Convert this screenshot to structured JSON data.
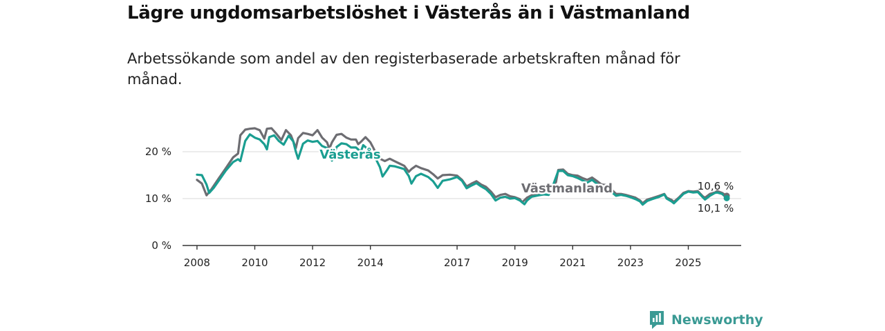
{
  "title": "Lägre ungdomsarbetslöshet i Västerås än i Västmanland",
  "subtitle": "Arbetssökande som andel av den registerbaserade arbetskraften månad för månad.",
  "brand": {
    "name": "Newsworthy",
    "icon": "newsworthy-logo-icon",
    "color": "#3a9a94"
  },
  "chart_data": {
    "type": "line",
    "title": "Lägre ungdomsarbetslöshet i Västerås än i Västmanland",
    "xlabel": "",
    "ylabel": "",
    "xlim": [
      2007.5,
      2026.83
    ],
    "ylim": [
      0,
      20
    ],
    "y_ticks": [
      0,
      10,
      20
    ],
    "y_tick_labels": [
      "0 %",
      "10 %",
      "20 %"
    ],
    "x_ticks": [
      2008,
      2010,
      2012,
      2014,
      2017,
      2019,
      2021,
      2023,
      2025
    ],
    "x_tick_labels": [
      "2008",
      "2010",
      "2012",
      "2014",
      "2017",
      "2019",
      "2021",
      "2023",
      "2025"
    ],
    "grid": true,
    "series": [
      {
        "name": "Västmanland",
        "label": "Västmanland",
        "color": "#6d6d72",
        "end_label": "10,6 %",
        "points": [
          [
            2008.0,
            14.0
          ],
          [
            2008.17,
            13.2
          ],
          [
            2008.33,
            10.7
          ],
          [
            2008.5,
            12.0
          ],
          [
            2008.75,
            14.3
          ],
          [
            2009.0,
            16.5
          ],
          [
            2009.25,
            18.8
          ],
          [
            2009.42,
            19.6
          ],
          [
            2009.5,
            23.5
          ],
          [
            2009.67,
            24.7
          ],
          [
            2009.83,
            24.9
          ],
          [
            2010.0,
            25.0
          ],
          [
            2010.17,
            24.6
          ],
          [
            2010.33,
            22.8
          ],
          [
            2010.42,
            24.9
          ],
          [
            2010.58,
            25.0
          ],
          [
            2010.75,
            23.8
          ],
          [
            2010.92,
            22.5
          ],
          [
            2011.08,
            24.6
          ],
          [
            2011.25,
            23.5
          ],
          [
            2011.42,
            20.8
          ],
          [
            2011.5,
            22.9
          ],
          [
            2011.67,
            24.0
          ],
          [
            2011.83,
            23.8
          ],
          [
            2012.0,
            23.5
          ],
          [
            2012.17,
            24.6
          ],
          [
            2012.33,
            23.0
          ],
          [
            2012.5,
            22.0
          ],
          [
            2012.58,
            20.6
          ],
          [
            2012.67,
            22.0
          ],
          [
            2012.83,
            23.6
          ],
          [
            2013.0,
            23.8
          ],
          [
            2013.17,
            23.0
          ],
          [
            2013.33,
            22.6
          ],
          [
            2013.5,
            22.6
          ],
          [
            2013.58,
            21.6
          ],
          [
            2013.67,
            22.1
          ],
          [
            2013.83,
            23.1
          ],
          [
            2014.0,
            22.0
          ],
          [
            2014.17,
            20.0
          ],
          [
            2014.33,
            18.5
          ],
          [
            2014.5,
            18.0
          ],
          [
            2014.67,
            18.5
          ],
          [
            2014.83,
            18.0
          ],
          [
            2015.0,
            17.5
          ],
          [
            2015.17,
            17.0
          ],
          [
            2015.33,
            15.7
          ],
          [
            2015.42,
            16.3
          ],
          [
            2015.58,
            17.0
          ],
          [
            2015.75,
            16.5
          ],
          [
            2016.0,
            16.0
          ],
          [
            2016.17,
            15.2
          ],
          [
            2016.33,
            14.3
          ],
          [
            2016.5,
            15.0
          ],
          [
            2016.75,
            15.1
          ],
          [
            2017.0,
            14.9
          ],
          [
            2017.17,
            14.0
          ],
          [
            2017.33,
            12.6
          ],
          [
            2017.5,
            13.2
          ],
          [
            2017.67,
            13.7
          ],
          [
            2017.83,
            13.0
          ],
          [
            2018.0,
            12.5
          ],
          [
            2018.17,
            11.5
          ],
          [
            2018.33,
            10.3
          ],
          [
            2018.5,
            10.8
          ],
          [
            2018.67,
            11.0
          ],
          [
            2018.83,
            10.5
          ],
          [
            2019.0,
            10.3
          ],
          [
            2019.17,
            9.9
          ],
          [
            2019.25,
            9.2
          ],
          [
            2019.42,
            10.2
          ],
          [
            2019.58,
            10.7
          ],
          [
            2019.83,
            11.0
          ],
          [
            2020.0,
            11.5
          ],
          [
            2020.25,
            12.5
          ],
          [
            2020.42,
            13.5
          ],
          [
            2020.5,
            16.1
          ],
          [
            2020.67,
            16.2
          ],
          [
            2020.83,
            15.3
          ],
          [
            2021.0,
            15.0
          ],
          [
            2021.17,
            14.9
          ],
          [
            2021.33,
            14.4
          ],
          [
            2021.5,
            14.0
          ],
          [
            2021.67,
            14.5
          ],
          [
            2021.83,
            13.8
          ],
          [
            2022.0,
            13.0
          ],
          [
            2022.17,
            12.9
          ],
          [
            2022.33,
            12.0
          ],
          [
            2022.5,
            11.0
          ],
          [
            2022.67,
            11.0
          ],
          [
            2022.83,
            10.8
          ],
          [
            2023.0,
            10.5
          ],
          [
            2023.17,
            10.2
          ],
          [
            2023.33,
            9.6
          ],
          [
            2023.42,
            9.0
          ],
          [
            2023.58,
            9.8
          ],
          [
            2023.75,
            10.1
          ],
          [
            2024.0,
            10.6
          ],
          [
            2024.17,
            11.0
          ],
          [
            2024.25,
            10.2
          ],
          [
            2024.42,
            9.7
          ],
          [
            2024.5,
            9.3
          ],
          [
            2024.67,
            10.2
          ],
          [
            2024.83,
            11.2
          ],
          [
            2025.0,
            11.6
          ],
          [
            2025.17,
            11.5
          ],
          [
            2025.33,
            11.6
          ],
          [
            2025.5,
            10.5
          ],
          [
            2025.58,
            10.2
          ],
          [
            2025.75,
            11.0
          ],
          [
            2025.92,
            11.3
          ],
          [
            2026.0,
            11.6
          ],
          [
            2026.17,
            11.2
          ],
          [
            2026.33,
            10.6
          ]
        ]
      },
      {
        "name": "Västerås",
        "label": "Västerås",
        "color": "#1a9e91",
        "end_label": "10,1 %",
        "points": [
          [
            2008.0,
            15.1
          ],
          [
            2008.17,
            15.0
          ],
          [
            2008.33,
            13.0
          ],
          [
            2008.42,
            11.2
          ],
          [
            2008.58,
            12.3
          ],
          [
            2008.83,
            14.5
          ],
          [
            2009.0,
            16.0
          ],
          [
            2009.25,
            17.8
          ],
          [
            2009.42,
            18.4
          ],
          [
            2009.5,
            18.0
          ],
          [
            2009.67,
            22.3
          ],
          [
            2009.83,
            23.7
          ],
          [
            2010.0,
            23.0
          ],
          [
            2010.17,
            22.6
          ],
          [
            2010.33,
            21.6
          ],
          [
            2010.42,
            20.5
          ],
          [
            2010.5,
            23.1
          ],
          [
            2010.67,
            23.5
          ],
          [
            2010.83,
            22.3
          ],
          [
            2011.0,
            21.5
          ],
          [
            2011.17,
            23.4
          ],
          [
            2011.33,
            22.2
          ],
          [
            2011.42,
            20.0
          ],
          [
            2011.5,
            18.5
          ],
          [
            2011.67,
            21.7
          ],
          [
            2011.83,
            22.4
          ],
          [
            2012.0,
            22.1
          ],
          [
            2012.17,
            22.3
          ],
          [
            2012.33,
            21.2
          ],
          [
            2012.5,
            20.8
          ],
          [
            2012.58,
            19.5
          ],
          [
            2012.67,
            18.1
          ],
          [
            2012.83,
            21.0
          ],
          [
            2013.0,
            21.8
          ],
          [
            2013.17,
            21.6
          ],
          [
            2013.33,
            20.9
          ],
          [
            2013.5,
            20.9
          ],
          [
            2013.67,
            20.0
          ],
          [
            2013.75,
            21.4
          ],
          [
            2013.92,
            20.5
          ],
          [
            2014.08,
            19.3
          ],
          [
            2014.17,
            18.7
          ],
          [
            2014.33,
            16.7
          ],
          [
            2014.42,
            14.7
          ],
          [
            2014.58,
            16.1
          ],
          [
            2014.67,
            17.0
          ],
          [
            2014.83,
            16.9
          ],
          [
            2015.0,
            16.6
          ],
          [
            2015.17,
            16.3
          ],
          [
            2015.33,
            14.8
          ],
          [
            2015.42,
            13.2
          ],
          [
            2015.58,
            14.8
          ],
          [
            2015.75,
            15.3
          ],
          [
            2016.0,
            14.6
          ],
          [
            2016.17,
            13.7
          ],
          [
            2016.33,
            12.3
          ],
          [
            2016.5,
            13.8
          ],
          [
            2016.75,
            14.1
          ],
          [
            2017.0,
            14.6
          ],
          [
            2017.17,
            13.8
          ],
          [
            2017.33,
            12.2
          ],
          [
            2017.5,
            12.8
          ],
          [
            2017.67,
            13.3
          ],
          [
            2017.83,
            12.6
          ],
          [
            2018.0,
            12.0
          ],
          [
            2018.17,
            11.0
          ],
          [
            2018.33,
            9.6
          ],
          [
            2018.5,
            10.2
          ],
          [
            2018.67,
            10.4
          ],
          [
            2018.83,
            10.0
          ],
          [
            2019.0,
            10.1
          ],
          [
            2019.17,
            9.6
          ],
          [
            2019.33,
            8.8
          ],
          [
            2019.42,
            9.6
          ],
          [
            2019.58,
            10.4
          ],
          [
            2019.83,
            10.7
          ],
          [
            2020.0,
            10.9
          ],
          [
            2020.17,
            10.8
          ],
          [
            2020.33,
            13.0
          ],
          [
            2020.5,
            15.9
          ],
          [
            2020.67,
            15.9
          ],
          [
            2020.83,
            15.0
          ],
          [
            2021.0,
            14.8
          ],
          [
            2021.17,
            14.4
          ],
          [
            2021.33,
            13.9
          ],
          [
            2021.5,
            13.4
          ],
          [
            2021.67,
            14.0
          ],
          [
            2021.83,
            13.2
          ],
          [
            2022.0,
            12.3
          ],
          [
            2022.17,
            12.2
          ],
          [
            2022.33,
            11.5
          ],
          [
            2022.5,
            10.6
          ],
          [
            2022.67,
            10.8
          ],
          [
            2022.83,
            10.6
          ],
          [
            2023.0,
            10.3
          ],
          [
            2023.17,
            9.9
          ],
          [
            2023.33,
            9.4
          ],
          [
            2023.42,
            8.7
          ],
          [
            2023.58,
            9.5
          ],
          [
            2023.75,
            9.9
          ],
          [
            2024.0,
            10.4
          ],
          [
            2024.17,
            10.9
          ],
          [
            2024.25,
            10.0
          ],
          [
            2024.42,
            9.4
          ],
          [
            2024.5,
            9.0
          ],
          [
            2024.67,
            10.0
          ],
          [
            2024.83,
            11.0
          ],
          [
            2025.0,
            11.5
          ],
          [
            2025.17,
            11.3
          ],
          [
            2025.33,
            11.4
          ],
          [
            2025.5,
            10.3
          ],
          [
            2025.58,
            9.8
          ],
          [
            2025.75,
            10.6
          ],
          [
            2025.92,
            11.2
          ],
          [
            2026.0,
            11.3
          ],
          [
            2026.17,
            11.0
          ],
          [
            2026.33,
            10.1
          ]
        ]
      }
    ]
  }
}
